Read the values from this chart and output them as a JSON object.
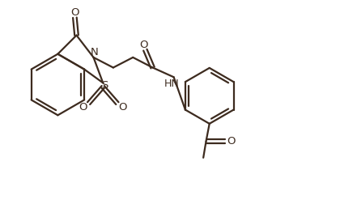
{
  "bg_color": "#ffffff",
  "line_color": "#3d2b1f",
  "line_width": 1.6,
  "figsize": [
    4.2,
    2.53
  ],
  "dpi": 100,
  "xlim": [
    0,
    10
  ],
  "ylim": [
    0,
    6
  ]
}
